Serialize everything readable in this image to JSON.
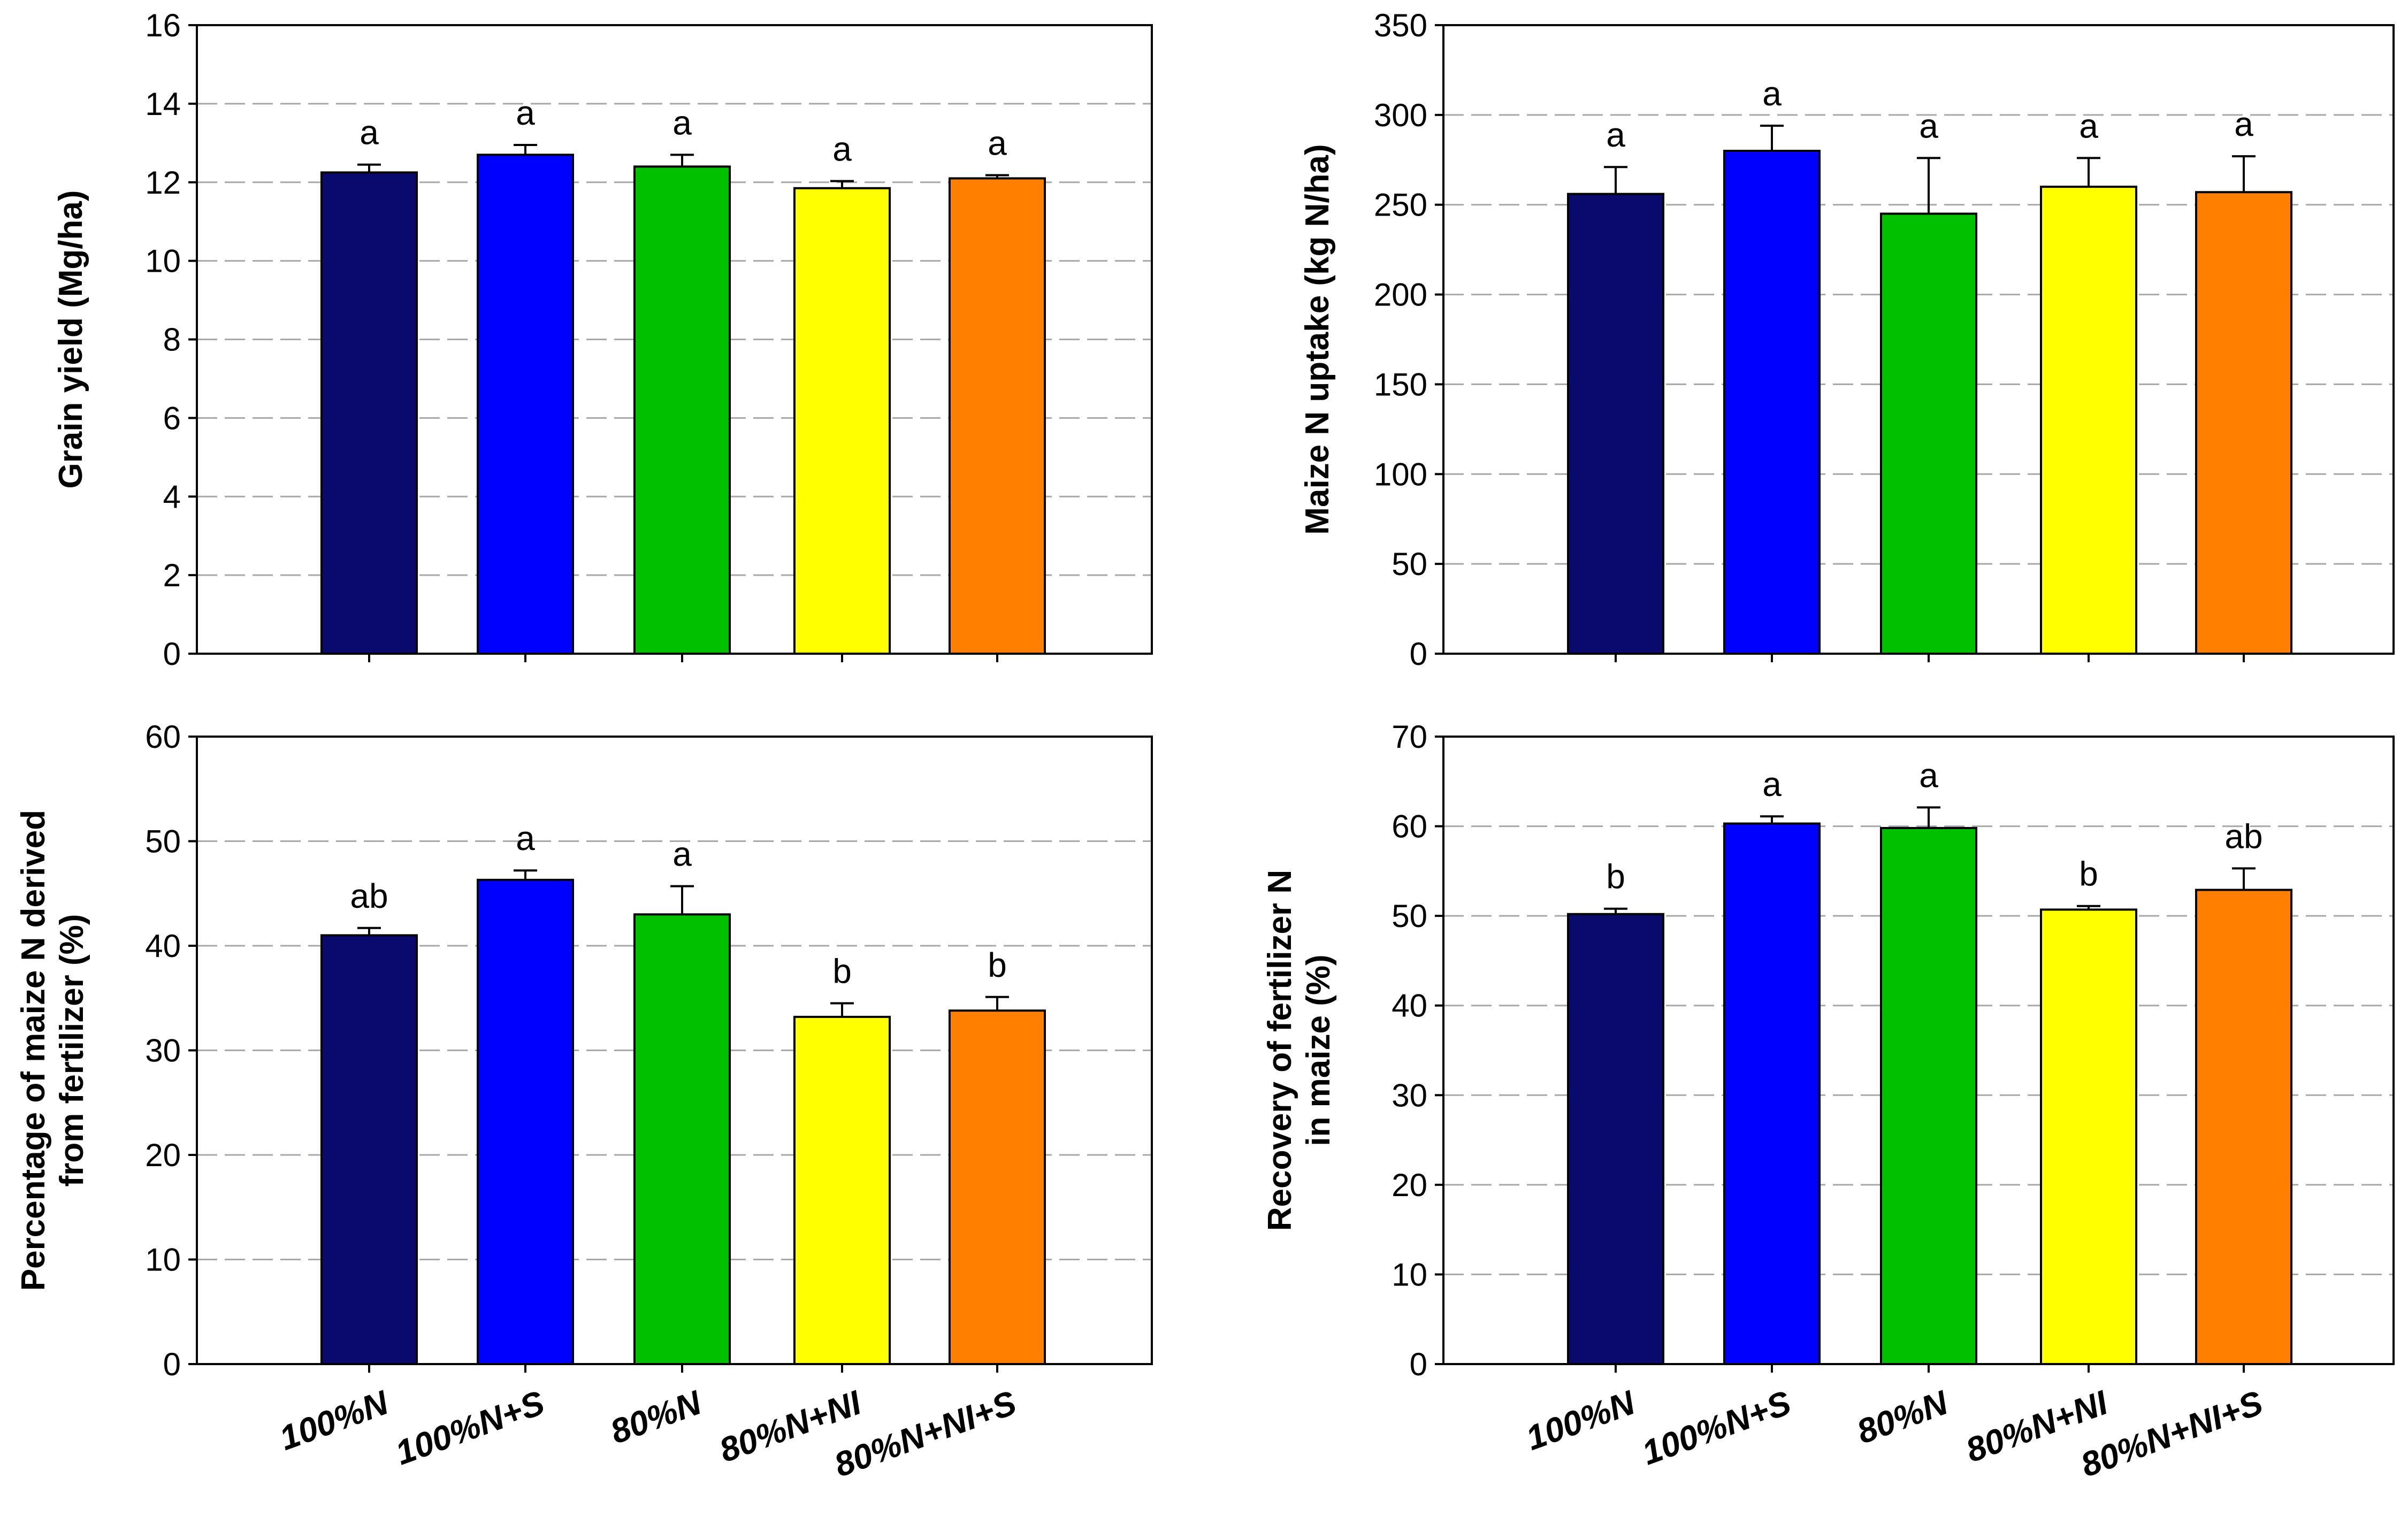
{
  "chart_data": [
    {
      "type": "bar",
      "panel": "top-left",
      "ylabel": [
        "Grain yield (Mg/ha)"
      ],
      "ylim": [
        0,
        16
      ],
      "yticks": [
        0,
        2,
        4,
        6,
        8,
        10,
        12,
        14,
        16
      ],
      "grid": "dashed horizontal",
      "categories": [
        "100%N",
        "100%N+S",
        "80%N",
        "80%N+NI",
        "80%N+NI+S"
      ],
      "show_category_labels": false,
      "values": [
        12.25,
        12.7,
        12.4,
        11.85,
        12.1
      ],
      "errors": [
        0.2,
        0.25,
        0.3,
        0.18,
        0.08
      ],
      "significance": [
        "a",
        "a",
        "a",
        "a",
        "a"
      ],
      "colors": [
        "#0a0a6e",
        "#0000ff",
        "#00c000",
        "#ffff00",
        "#ff8000"
      ]
    },
    {
      "type": "bar",
      "panel": "top-right",
      "ylabel": [
        "Maize N uptake (kg N/ha)"
      ],
      "ylim": [
        0,
        350
      ],
      "yticks": [
        0,
        50,
        100,
        150,
        200,
        250,
        300,
        350
      ],
      "grid": "dashed horizontal",
      "categories": [
        "100%N",
        "100%N+S",
        "80%N",
        "80%N+NI",
        "80%N+NI+S"
      ],
      "show_category_labels": false,
      "values": [
        256,
        280,
        245,
        260,
        257
      ],
      "errors": [
        15,
        14,
        31,
        16,
        20
      ],
      "significance": [
        "a",
        "a",
        "a",
        "a",
        "a"
      ],
      "colors": [
        "#0a0a6e",
        "#0000ff",
        "#00c000",
        "#ffff00",
        "#ff8000"
      ]
    },
    {
      "type": "bar",
      "panel": "bottom-left",
      "ylabel": [
        "Percentage of maize N derived",
        "from fertilizer (%)"
      ],
      "ylim": [
        0,
        60
      ],
      "yticks": [
        0,
        10,
        20,
        30,
        40,
        50,
        60
      ],
      "grid": "dashed horizontal",
      "categories": [
        "100%N",
        "100%N+S",
        "80%N",
        "80%N+NI",
        "80%N+NI+S"
      ],
      "show_category_labels": true,
      "values": [
        41,
        46.3,
        43,
        33.2,
        33.8
      ],
      "errors": [
        0.7,
        0.9,
        2.7,
        1.3,
        1.3
      ],
      "significance": [
        "ab",
        "a",
        "a",
        "b",
        "b"
      ],
      "colors": [
        "#0a0a6e",
        "#0000ff",
        "#00c000",
        "#ffff00",
        "#ff8000"
      ]
    },
    {
      "type": "bar",
      "panel": "bottom-right",
      "ylabel": [
        "Recovery of fertilizer N",
        "in maize (%)"
      ],
      "ylim": [
        0,
        70
      ],
      "yticks": [
        0,
        10,
        20,
        30,
        40,
        50,
        60,
        70
      ],
      "grid": "dashed horizontal",
      "categories": [
        "100%N",
        "100%N+S",
        "80%N",
        "80%N+NI",
        "80%N+NI+S"
      ],
      "show_category_labels": true,
      "values": [
        50.2,
        60.3,
        59.8,
        50.7,
        52.9
      ],
      "errors": [
        0.6,
        0.8,
        2.3,
        0.4,
        2.4
      ],
      "significance": [
        "b",
        "a",
        "a",
        "b",
        "ab"
      ],
      "colors": [
        "#0a0a6e",
        "#0000ff",
        "#00c000",
        "#ffff00",
        "#ff8000"
      ]
    }
  ]
}
